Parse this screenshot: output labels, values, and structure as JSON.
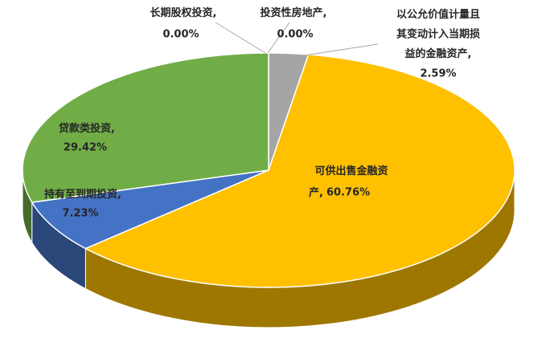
{
  "chart_data": {
    "type": "pie3d",
    "categories": [
      "长期股权投资,",
      "投资性房地产,",
      "以公允价值计量且其变动计入当期损益的金融资产,",
      "可供出售金融资产,",
      "持有至到期投资,",
      "贷款类投资,"
    ],
    "values": [
      0,
      0,
      2.59,
      60.76,
      7.23,
      29.42
    ],
    "value_labels": [
      "0.00%",
      "0.00%",
      "2.59%",
      "60.76%",
      "7.23%",
      "29.42%"
    ],
    "colors": [
      "#5b9bd5",
      "#ed7d31",
      "#a5a5a5",
      "#ffc000",
      "#4472c4",
      "#70ad47"
    ]
  }
}
